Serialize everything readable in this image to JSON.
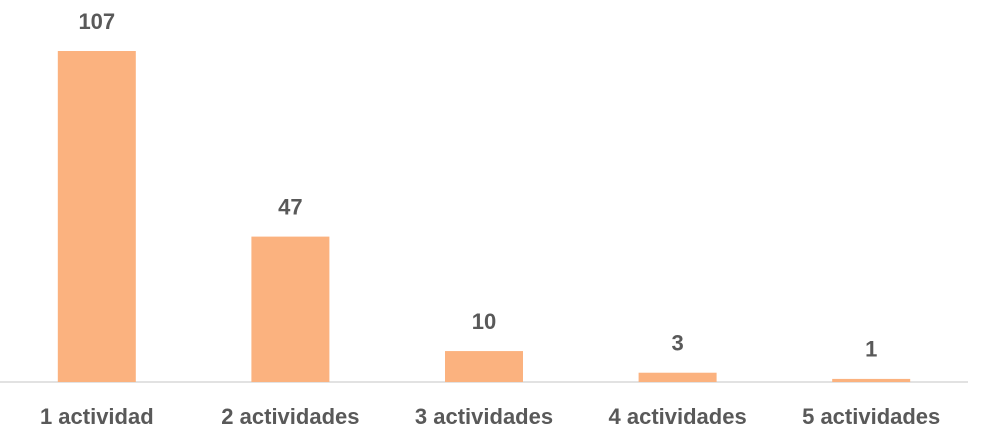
{
  "chart_data": {
    "type": "bar",
    "categories": [
      "1 actividad",
      "2 actividades",
      "3 actividades",
      "4 actividades",
      "5 actividades"
    ],
    "values": [
      107,
      47,
      10,
      3,
      1
    ],
    "color": "#fbb27f"
  }
}
